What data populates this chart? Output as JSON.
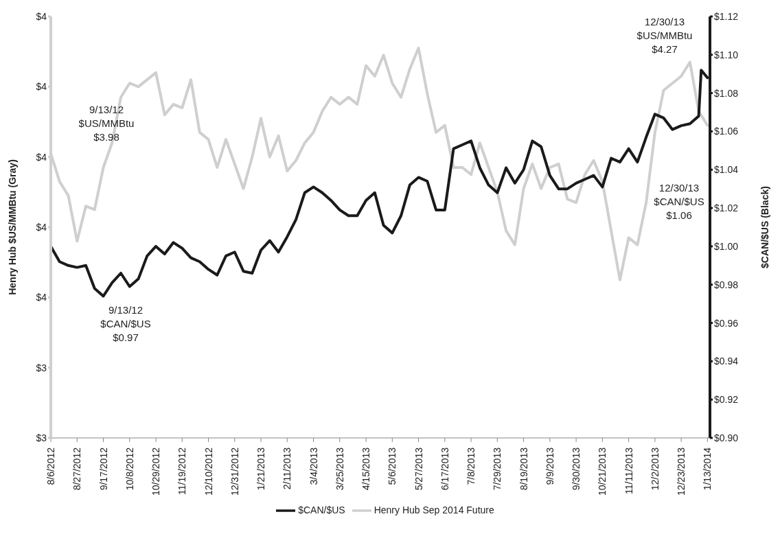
{
  "chart_data": {
    "type": "line",
    "xlabel": null,
    "ylabel": "Henry Hub $US/MMBtu (Gray)",
    "y2label": "$CAN/$US (Black)",
    "x": [
      "2012-08-06",
      "2012-08-13",
      "2012-08-20",
      "2012-08-27",
      "2012-09-03",
      "2012-09-10",
      "2012-09-17",
      "2012-09-24",
      "2012-10-01",
      "2012-10-08",
      "2012-10-15",
      "2012-10-22",
      "2012-10-29",
      "2012-11-05",
      "2012-11-12",
      "2012-11-19",
      "2012-11-26",
      "2012-12-03",
      "2012-12-10",
      "2012-12-17",
      "2012-12-24",
      "2012-12-31",
      "2013-01-07",
      "2013-01-14",
      "2013-01-21",
      "2013-01-28",
      "2013-02-04",
      "2013-02-11",
      "2013-02-18",
      "2013-02-25",
      "2013-03-04",
      "2013-03-11",
      "2013-03-18",
      "2013-03-25",
      "2013-04-01",
      "2013-04-08",
      "2013-04-15",
      "2013-04-22",
      "2013-04-29",
      "2013-05-06",
      "2013-05-13",
      "2013-05-20",
      "2013-05-27",
      "2013-06-03",
      "2013-06-10",
      "2013-06-17",
      "2013-06-24",
      "2013-07-01",
      "2013-07-08",
      "2013-07-15",
      "2013-07-22",
      "2013-07-29",
      "2013-08-05",
      "2013-08-12",
      "2013-08-19",
      "2013-08-26",
      "2013-09-02",
      "2013-09-09",
      "2013-09-16",
      "2013-09-23",
      "2013-09-30",
      "2013-10-07",
      "2013-10-14",
      "2013-10-21",
      "2013-10-28",
      "2013-11-04",
      "2013-11-11",
      "2013-11-18",
      "2013-11-25",
      "2013-12-02",
      "2013-12-09",
      "2013-12-16",
      "2013-12-23",
      "2013-12-30",
      "2014-01-06",
      "2014-01-13"
    ],
    "series": [
      {
        "name": "Henry Hub Sep 2014 Future",
        "color": "#cfcfcf",
        "axis": "y",
        "values": [
          4.01,
          3.93,
          3.89,
          3.76,
          3.86,
          3.85,
          3.97,
          4.04,
          4.17,
          4.21,
          4.2,
          4.22,
          4.24,
          4.12,
          4.15,
          4.14,
          4.22,
          4.07,
          4.05,
          3.97,
          4.05,
          3.98,
          3.91,
          4.0,
          4.11,
          4.0,
          4.06,
          3.96,
          3.99,
          4.04,
          4.07,
          4.13,
          4.17,
          4.15,
          4.17,
          4.15,
          4.26,
          4.23,
          4.29,
          4.21,
          4.17,
          4.25,
          4.31,
          4.18,
          4.07,
          4.09,
          3.97,
          3.97,
          3.95,
          4.04,
          3.97,
          3.9,
          3.79,
          3.75,
          3.91,
          3.98,
          3.91,
          3.97,
          3.98,
          3.88,
          3.87,
          3.95,
          3.99,
          3.93,
          3.79,
          3.65,
          3.77,
          3.75,
          3.87,
          4.07,
          4.19,
          4.21,
          4.23,
          4.27,
          4.13,
          4.09
        ]
      },
      {
        "name": "$CAN/$US",
        "color": "#1a1a1a",
        "axis": "y2",
        "x": [
          "2012-08-06",
          "2012-08-13",
          "2012-08-20",
          "2012-08-27",
          "2012-09-03",
          "2012-09-10",
          "2012-09-17",
          "2012-09-24",
          "2012-10-01",
          "2012-10-08",
          "2012-10-15",
          "2012-10-22",
          "2012-10-29",
          "2012-11-05",
          "2012-11-12",
          "2012-11-19",
          "2012-11-26",
          "2012-12-03",
          "2012-12-10",
          "2012-12-17",
          "2012-12-24",
          "2012-12-31",
          "2013-01-07",
          "2013-01-14",
          "2013-01-21",
          "2013-01-28",
          "2013-02-04",
          "2013-02-11",
          "2013-02-18",
          "2013-02-25",
          "2013-03-04",
          "2013-03-11",
          "2013-03-18",
          "2013-03-25",
          "2013-04-01",
          "2013-04-08",
          "2013-04-15",
          "2013-04-22",
          "2013-04-29",
          "2013-05-06",
          "2013-05-13",
          "2013-05-20",
          "2013-05-27",
          "2013-06-03",
          "2013-06-10",
          "2013-06-17",
          "2013-06-24",
          "2013-07-01",
          "2013-07-08",
          "2013-07-15",
          "2013-07-22",
          "2013-07-29",
          "2013-08-05",
          "2013-08-12",
          "2013-08-19",
          "2013-08-26",
          "2013-09-02",
          "2013-09-09",
          "2013-09-16",
          "2013-09-23",
          "2013-09-30",
          "2013-10-07",
          "2013-10-14",
          "2013-10-21",
          "2013-10-28",
          "2013-11-04",
          "2013-11-11",
          "2013-11-18",
          "2013-11-25",
          "2013-12-02",
          "2013-12-09",
          "2013-12-16",
          "2013-12-23",
          "2013-12-30",
          "2014-01-06",
          "2014-01-08",
          "2014-01-13"
        ],
        "values": [
          1.0,
          0.992,
          0.99,
          0.989,
          0.99,
          0.978,
          0.974,
          0.981,
          0.986,
          0.979,
          0.983,
          0.995,
          1.0,
          0.996,
          1.002,
          0.999,
          0.994,
          0.992,
          0.988,
          0.985,
          0.995,
          0.997,
          0.987,
          0.986,
          0.998,
          1.003,
          0.997,
          1.005,
          1.014,
          1.028,
          1.031,
          1.028,
          1.024,
          1.019,
          1.016,
          1.016,
          1.024,
          1.028,
          1.011,
          1.007,
          1.016,
          1.032,
          1.036,
          1.034,
          1.019,
          1.019,
          1.051,
          1.053,
          1.055,
          1.041,
          1.032,
          1.028,
          1.041,
          1.033,
          1.04,
          1.055,
          1.052,
          1.037,
          1.03,
          1.03,
          1.033,
          1.035,
          1.037,
          1.031,
          1.046,
          1.044,
          1.051,
          1.044,
          1.057,
          1.069,
          1.067,
          1.061,
          1.063,
          1.064,
          1.068,
          1.092,
          1.088
        ]
      }
    ],
    "xlim": [
      "2012-08-06",
      "2014-01-15"
    ],
    "xticks": [
      {
        "value": "2012-08-06",
        "label": "8/6/2012"
      },
      {
        "value": "2012-08-27",
        "label": "8/27/2012"
      },
      {
        "value": "2012-09-17",
        "label": "9/17/2012"
      },
      {
        "value": "2012-10-08",
        "label": "10/8/2012"
      },
      {
        "value": "2012-10-29",
        "label": "10/29/2012"
      },
      {
        "value": "2012-11-19",
        "label": "11/19/2012"
      },
      {
        "value": "2012-12-10",
        "label": "12/10/2012"
      },
      {
        "value": "2012-12-31",
        "label": "12/31/2012"
      },
      {
        "value": "2013-01-21",
        "label": "1/21/2013"
      },
      {
        "value": "2013-02-11",
        "label": "2/11/2013"
      },
      {
        "value": "2013-03-04",
        "label": "3/4/2013"
      },
      {
        "value": "2013-03-25",
        "label": "3/25/2013"
      },
      {
        "value": "2013-04-15",
        "label": "4/15/2013"
      },
      {
        "value": "2013-05-06",
        "label": "5/6/2013"
      },
      {
        "value": "2013-05-27",
        "label": "5/27/2013"
      },
      {
        "value": "2013-06-17",
        "label": "6/17/2013"
      },
      {
        "value": "2013-07-08",
        "label": "7/8/2013"
      },
      {
        "value": "2013-07-29",
        "label": "7/29/2013"
      },
      {
        "value": "2013-08-19",
        "label": "8/19/2013"
      },
      {
        "value": "2013-09-09",
        "label": "9/9/2013"
      },
      {
        "value": "2013-09-30",
        "label": "9/30/2013"
      },
      {
        "value": "2013-10-21",
        "label": "10/21/2013"
      },
      {
        "value": "2013-11-11",
        "label": "11/11/2013"
      },
      {
        "value": "2013-12-02",
        "label": "12/2/2013"
      },
      {
        "value": "2013-12-23",
        "label": "12/23/2013"
      },
      {
        "value": "2014-01-13",
        "label": "1/13/2014"
      }
    ],
    "ylim": [
      3.2,
      4.4
    ],
    "yticks": [
      {
        "value": 3.2,
        "label": "$3"
      },
      {
        "value": 3.4,
        "label": "$3"
      },
      {
        "value": 3.6,
        "label": "$4"
      },
      {
        "value": 3.8,
        "label": "$4"
      },
      {
        "value": 4.0,
        "label": "$4"
      },
      {
        "value": 4.2,
        "label": "$4"
      },
      {
        "value": 4.4,
        "label": "$4"
      }
    ],
    "y2lim": [
      0.9,
      1.12
    ],
    "y2ticks": [
      {
        "value": 0.9,
        "label": "$0.90"
      },
      {
        "value": 0.92,
        "label": "$0.92"
      },
      {
        "value": 0.94,
        "label": "$0.94"
      },
      {
        "value": 0.96,
        "label": "$0.96"
      },
      {
        "value": 0.98,
        "label": "$0.98"
      },
      {
        "value": 1.0,
        "label": "$1.00"
      },
      {
        "value": 1.02,
        "label": "$1.02"
      },
      {
        "value": 1.04,
        "label": "$1.04"
      },
      {
        "value": 1.06,
        "label": "$1.06"
      },
      {
        "value": 1.08,
        "label": "$1.08"
      },
      {
        "value": 1.1,
        "label": "$1.10"
      },
      {
        "value": 1.12,
        "label": "$1.12"
      }
    ],
    "annotations": [
      "9/13/12\n$US/MMBtu\n$3.98",
      "9/13/12\n$CAN/$US\n$0.97",
      "12/30/13\n$US/MMBtu\n$4.27",
      "12/30/13\n$CAN/$US\n$1.06"
    ],
    "grid": false,
    "legend": "bottom",
    "marker": "none",
    "line_style": "solid"
  }
}
